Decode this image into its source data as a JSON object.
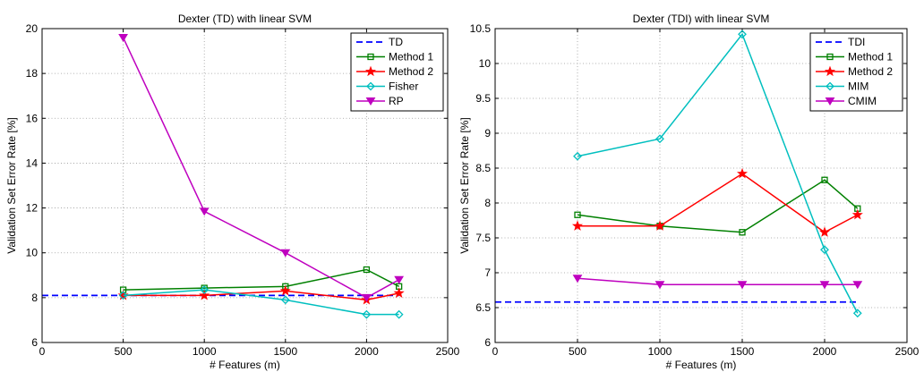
{
  "chart_data": [
    {
      "type": "line",
      "title": "Dexter (TD) with linear SVM",
      "xlabel": "# Features (m)",
      "ylabel": "Validation Set Error Rate [%]",
      "xlim": [
        0,
        2500
      ],
      "ylim": [
        6,
        20
      ],
      "xticks": [
        0,
        500,
        1000,
        1500,
        2000,
        2500
      ],
      "yticks": [
        6,
        8,
        10,
        12,
        14,
        16,
        18,
        20
      ],
      "ytick_labels": [
        "6",
        "8",
        "10",
        "12",
        "14",
        "16",
        "18",
        "20"
      ],
      "grid": true,
      "legend_position": "top-right",
      "series": [
        {
          "name": "TD",
          "color": "#0000ff",
          "dash": "dashed",
          "marker": "none",
          "x": [
            0,
            2200
          ],
          "y": [
            8.1,
            8.1
          ]
        },
        {
          "name": "Method 1",
          "color": "#008000",
          "dash": "solid",
          "marker": "square",
          "x": [
            500,
            1000,
            1500,
            2000,
            2200
          ],
          "y": [
            8.35,
            8.43,
            8.5,
            9.25,
            8.5
          ]
        },
        {
          "name": "Method 2",
          "color": "#ff0000",
          "dash": "solid",
          "marker": "star",
          "x": [
            500,
            1000,
            1500,
            2000,
            2200
          ],
          "y": [
            8.1,
            8.1,
            8.3,
            7.9,
            8.2
          ]
        },
        {
          "name": "Fisher",
          "color": "#00bfbf",
          "dash": "solid",
          "marker": "diamond",
          "x": [
            500,
            1000,
            1500,
            2000,
            2200
          ],
          "y": [
            8.1,
            8.35,
            7.9,
            7.25,
            7.25
          ]
        },
        {
          "name": "RP",
          "color": "#bf00bf",
          "dash": "solid",
          "marker": "triangle-down",
          "x": [
            500,
            1000,
            1500,
            2000,
            2200
          ],
          "y": [
            19.6,
            11.85,
            10.0,
            8.0,
            8.8
          ]
        }
      ]
    },
    {
      "type": "line",
      "title": "Dexter (TDI) with linear SVM",
      "xlabel": "# Features (m)",
      "ylabel": "Validation Set Error Rate [%]",
      "xlim": [
        0,
        2500
      ],
      "ylim": [
        6,
        10.5
      ],
      "xticks": [
        0,
        500,
        1000,
        1500,
        2000,
        2500
      ],
      "yticks": [
        6,
        6.5,
        7,
        7.5,
        8,
        8.5,
        9,
        9.5,
        10,
        10.5
      ],
      "ytick_labels": [
        "6",
        "6.5",
        "7",
        "7.5",
        "8",
        "8.5",
        "9",
        "9.5",
        "10",
        "10.5"
      ],
      "grid": true,
      "legend_position": "top-right",
      "series": [
        {
          "name": "TDI",
          "color": "#0000ff",
          "dash": "dashed",
          "marker": "none",
          "x": [
            0,
            2200
          ],
          "y": [
            6.58,
            6.58
          ]
        },
        {
          "name": "Method 1",
          "color": "#008000",
          "dash": "solid",
          "marker": "square",
          "x": [
            500,
            1000,
            1500,
            2000,
            2200
          ],
          "y": [
            7.83,
            7.67,
            7.58,
            8.33,
            7.92
          ]
        },
        {
          "name": "Method 2",
          "color": "#ff0000",
          "dash": "solid",
          "marker": "star",
          "x": [
            500,
            1000,
            1500,
            2000,
            2200
          ],
          "y": [
            7.67,
            7.67,
            8.42,
            7.58,
            7.83
          ]
        },
        {
          "name": "MIM",
          "color": "#00bfbf",
          "dash": "solid",
          "marker": "diamond",
          "x": [
            500,
            1000,
            1500,
            2000,
            2200
          ],
          "y": [
            8.67,
            8.92,
            10.42,
            7.33,
            6.42
          ]
        },
        {
          "name": "CMIM",
          "color": "#bf00bf",
          "dash": "solid",
          "marker": "triangle-down",
          "x": [
            500,
            1000,
            1500,
            2000,
            2200
          ],
          "y": [
            6.92,
            6.83,
            6.83,
            6.83,
            6.83
          ]
        }
      ]
    }
  ]
}
